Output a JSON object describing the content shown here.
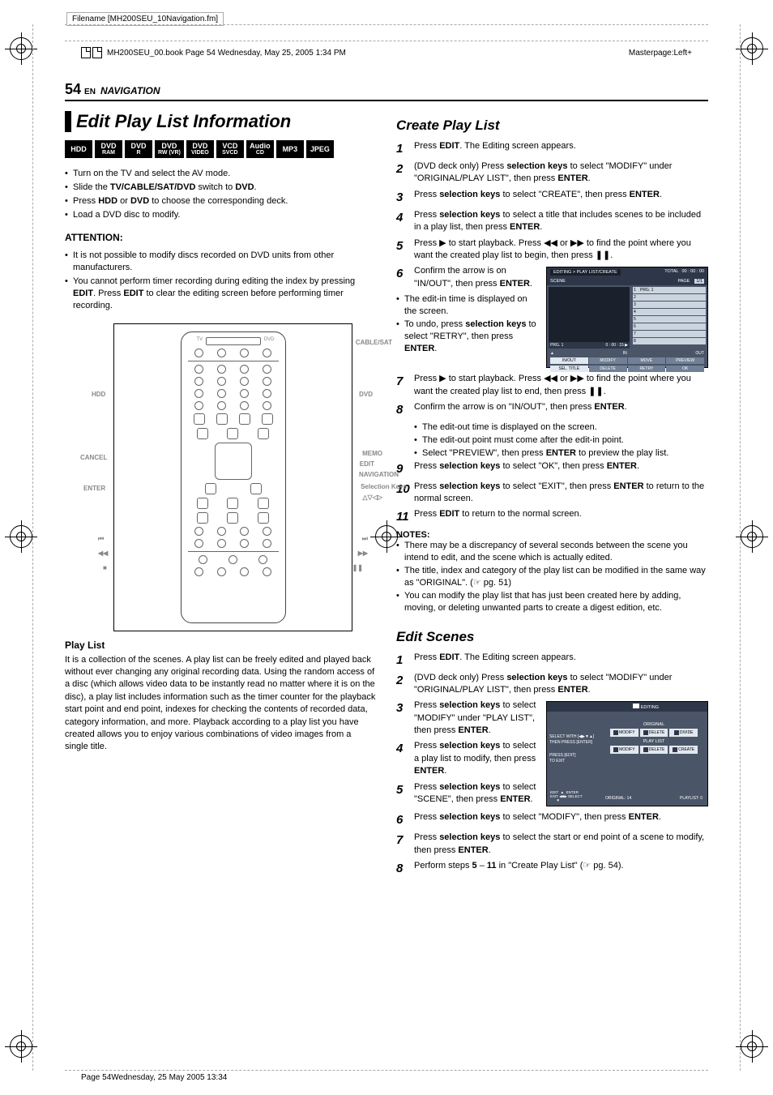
{
  "meta": {
    "filename": "Filename [MH200SEU_10Navigation.fm]",
    "bookinfo": "MH200SEU_00.book  Page 54  Wednesday, May 25, 2005  1:34 PM",
    "masterpage": "Masterpage:Left+",
    "footer": "Page 54Wednesday, 25 May 2005  13:34"
  },
  "header": {
    "page_num": "54",
    "lang": "EN",
    "section": "NAVIGATION"
  },
  "left": {
    "title": "Edit Play List Information",
    "badges": [
      "HDD",
      "DVD|RAM",
      "DVD|R",
      "DVD|RW (VR)",
      "DVD|VIDEO",
      "VCD|SVCD",
      "Audio|CD",
      "MP3",
      "JPEG"
    ],
    "setup": [
      "Turn on the TV and select the AV mode.",
      "Slide the <b>TV/CABLE/SAT/DVD</b> switch to <b>DVD</b>.",
      "Press <b>HDD</b> or <b>DVD</b> to choose the corresponding deck.",
      "Load a DVD disc to modify."
    ],
    "attention_h": "ATTENTION:",
    "attention": [
      "It is not possible to modify discs recorded on DVD units from other manufacturers.",
      "You cannot perform timer recording during editing the index by pressing <b>EDIT</b>. Press <b>EDIT</b> to clear the editing screen before performing timer recording."
    ],
    "remote_labels": {
      "cablesat": "CABLE/SAT",
      "tv": "TV",
      "dvd_sw": "DVD",
      "hdd": "HDD",
      "dvd": "DVD",
      "cancel": "CANCEL",
      "memo": "MEMO",
      "edit": "EDIT",
      "navigation": "NAVIGATION",
      "enter": "ENTER",
      "selkeys": "Selection Keys",
      "arrows": "△▽◁▷",
      "prev": "⏮",
      "next": "⏭",
      "rew": "◀◀",
      "ff": "▶▶",
      "stop": "■",
      "pause": "❚❚"
    },
    "playlist_h": "Play List",
    "playlist_body": "It is a collection of the scenes. A play list can be freely edited and played back without ever changing any original recording data. Using the random access of a disc (which allows video data to be instantly read no matter where it is on the disc), a play list includes information such as the timer counter for the playback start point and end point, indexes for checking the contents of recorded data, category information, and more. Playback according to a play list you have created allows you to enjoy various combinations of video images from a single title."
  },
  "right": {
    "create_h": "Create Play List",
    "create_steps": [
      {
        "n": "1",
        "t": "Press <b>EDIT</b>. The Editing screen appears."
      },
      {
        "n": "2",
        "t": "(DVD deck only) Press <b>selection keys</b> to select \"MODIFY\" under \"ORIGINAL/PLAY LIST\", then press <b>ENTER</b>."
      },
      {
        "n": "3",
        "t": "Press <b>selection keys</b> to select \"CREATE\", then press <b>ENTER</b>."
      },
      {
        "n": "4",
        "t": "Press <b>selection keys</b> to select a title that includes scenes to be included in a play list, then press <b>ENTER</b>."
      },
      {
        "n": "5",
        "t": "Press ▶ to start playback. Press ◀◀ or ▶▶ to find the point where you want the created play list to begin, then press ❚❚."
      }
    ],
    "step6": {
      "n": "6",
      "t": "Confirm the arrow is on \"IN/OUT\", then press <b>ENTER</b>."
    },
    "step6_subs": [
      "The edit-in time is displayed on the screen.",
      "To undo, press <b>selection keys</b> to select \"RETRY\", then press <b>ENTER</b>."
    ],
    "step7": {
      "n": "7",
      "t": "Press ▶ to start playback. Press ◀◀ or ▶▶ to find the point where you want the created play list to end, then press ❚❚."
    },
    "step8": {
      "n": "8",
      "t": "Confirm the arrow is on \"IN/OUT\", then press <b>ENTER</b>."
    },
    "step8_subs": [
      "The edit-out time is displayed on the screen.",
      "The edit-out point must come after the edit-in point.",
      "Select \"PREVIEW\", then press <b>ENTER</b> to preview the play list."
    ],
    "step9": {
      "n": "9",
      "t": "Press <b>selection keys</b> to select \"OK\", then press <b>ENTER</b>."
    },
    "step10": {
      "n": "10",
      "t": "Press <b>selection keys</b> to select \"EXIT\", then press <b>ENTER</b> to return to the normal screen."
    },
    "step11": {
      "n": "11",
      "t": "Press <b>EDIT</b> to return to the normal screen."
    },
    "notes_h": "NOTES:",
    "notes": [
      "There may be a discrepancy of several seconds between the scene you intend to edit, and the scene which is actually edited.",
      "The title, index and category of the play list can be modified in the same way as \"ORIGINAL\". (☞ pg. 51)",
      "You can modify the play list that has just been created here by adding, moving, or deleting unwanted parts to create a digest edition, etc."
    ],
    "osd1": {
      "path": "EDITING > PLAY LIST/CREATE",
      "total_lbl": "TOTAL",
      "total": "00 : 00 : 00",
      "scene": "SCENE",
      "page_lbl": "PAGE",
      "page": "1/1",
      "rows": [
        "1  PRG. 1",
        "2",
        "3",
        "4",
        "5",
        "6",
        "7",
        "8"
      ],
      "left_prg": "PRG. 1",
      "left_time": "0 : 00 : 15 ▶",
      "in": "IN",
      "out": "OUT",
      "btns1": [
        "IN/OUT",
        "MODIFY",
        "MOVE",
        "PREVIEW"
      ],
      "btns2": [
        "SEL. TITLE",
        "DELETE",
        "RETRY",
        "OK"
      ]
    },
    "edit_h": "Edit Scenes",
    "edit_steps_a": [
      {
        "n": "1",
        "t": "Press <b>EDIT</b>. The Editing screen appears."
      },
      {
        "n": "2",
        "t": "(DVD deck only) Press <b>selection keys</b> to select \"MODIFY\" under \"ORIGINAL/PLAY LIST\", then press <b>ENTER</b>."
      }
    ],
    "edit_step3": {
      "n": "3",
      "t": "Press <b>selection keys</b> to select \"MODIFY\" under \"PLAY LIST\", then press <b>ENTER</b>."
    },
    "edit_step4": {
      "n": "4",
      "t": "Press <b>selection keys</b> to select a play list to modify, then press <b>ENTER</b>."
    },
    "edit_step5": {
      "n": "5",
      "t": "Press <b>selection keys</b> to select \"SCENE\", then press <b>ENTER</b>."
    },
    "edit_steps_b": [
      {
        "n": "6",
        "t": "Press <b>selection keys</b> to select \"MODIFY\", then press <b>ENTER</b>."
      },
      {
        "n": "7",
        "t": "Press <b>selection keys</b> to select the start or end point of a scene to modify, then press <b>ENTER</b>."
      },
      {
        "n": "8",
        "t": "Perform steps <b>5</b> – <b>11</b> in \"Create Play List\" (☞ pg. 54)."
      }
    ],
    "osd2": {
      "title": "EDITING",
      "original": "ORIGINAL",
      "orig_btns": [
        "MODIFY",
        "DELETE",
        "DIVIDE"
      ],
      "playlist": "PLAY LIST",
      "pl_btns": [
        "MODIFY",
        "DELETE",
        "CREATE"
      ],
      "help1": "SELECT WITH [◀▶▼▲]",
      "help2": "THEN PRESS [ENTER]",
      "help3": "PRESS [EDIT]",
      "help4": "TO EXIT",
      "foot_l": "ORIGINAL: 14",
      "foot_r": "PLAYLIST: 0",
      "nav": "EDIT  ▲  ENTER\nEXIT ◀■▶ SELECT\n      ▼"
    }
  }
}
